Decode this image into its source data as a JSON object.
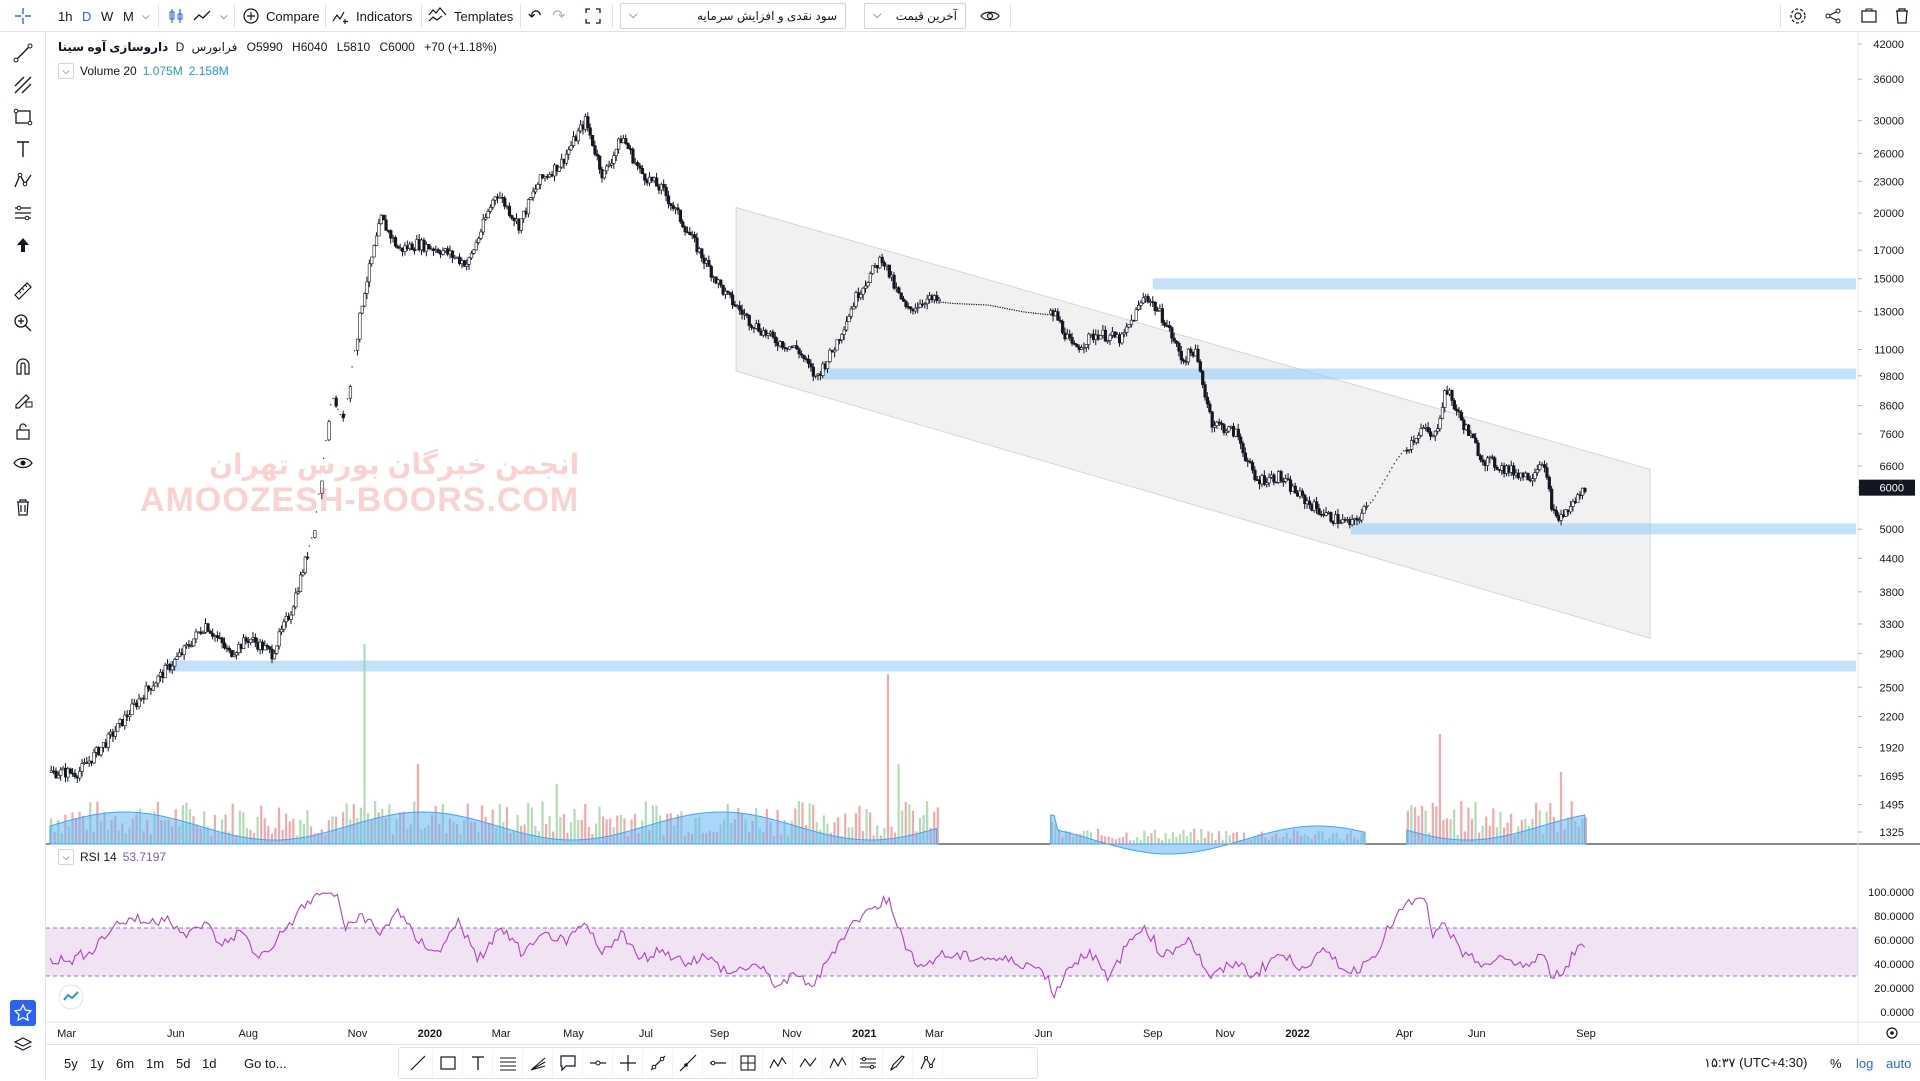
{
  "topbar": {
    "intervals": [
      "1h",
      "D",
      "W",
      "M"
    ],
    "selected_interval": "D",
    "compare_label": "Compare",
    "indicators_label": "Indicators",
    "templates_label": "Templates",
    "dropdown1_value": "سود نقدی و افزایش سرمایه",
    "dropdown2_value": "آخرین قیمت"
  },
  "legend": {
    "symbol": "داروسازی آوه سینا",
    "interval": "D",
    "exchange": "فرابورس",
    "open": "O5990",
    "high": "H6040",
    "low": "L5810",
    "close": "C6000",
    "change": "+70 (+1.18%)",
    "volume_label": "Volume 20",
    "volume_value": "1.075M",
    "volume_ma": "2.158M",
    "rsi_label": "RSI 14",
    "rsi_value": "53.7197"
  },
  "watermark": {
    "fa": "انجمن خبرگان بورس تهران",
    "en": "AMOOZESH-BOORS.COM"
  },
  "bottombar": {
    "ranges": [
      "5y",
      "1y",
      "6m",
      "1m",
      "5d",
      "1d"
    ],
    "goto_label": "Go to...",
    "clock": "۱۵:۳۷ (UTC+4:30)",
    "percent_label": "%",
    "log_label": "log",
    "auto_label": "auto"
  },
  "chart_data": [
    {
      "type": "candlestick",
      "scale": "log",
      "price_axis_ticks": [
        42000,
        36000,
        30000,
        26000,
        23000,
        20000,
        17000,
        15000,
        13000,
        11000,
        9800,
        8600,
        7600,
        6600,
        6000,
        5000,
        4400,
        3800,
        3300,
        2900,
        2500,
        2200,
        1920,
        1695,
        1495,
        1325
      ],
      "last_price": 6000,
      "x_tick_labels": [
        "Mar",
        "Jun",
        "Aug",
        "Nov",
        "2020",
        "Mar",
        "May",
        "Jul",
        "Sep",
        "Nov",
        "2021",
        "Mar",
        "Jun",
        "Sep",
        "Nov",
        "2022",
        "Apr",
        "Jun",
        "Sep"
      ],
      "close_path": [
        [
          "2019-02-15",
          1720
        ],
        [
          "2019-03-10",
          1720
        ],
        [
          "2019-04-05",
          2000
        ],
        [
          "2019-05-05",
          2450
        ],
        [
          "2019-06-05",
          2900
        ],
        [
          "2019-06-25",
          3300
        ],
        [
          "2019-07-15",
          2900
        ],
        [
          "2019-08-01",
          3100
        ],
        [
          "2019-08-20",
          2900
        ],
        [
          "2019-09-05",
          3500
        ],
        [
          "2019-09-25",
          5000
        ],
        [
          "2019-10-10",
          9000
        ],
        [
          "2019-10-20",
          8000
        ],
        [
          "2019-11-05",
          14000
        ],
        [
          "2019-11-20",
          19500
        ],
        [
          "2019-12-05",
          17000
        ],
        [
          "2019-12-20",
          17500
        ],
        [
          "2020-01-10",
          17000
        ],
        [
          "2020-02-01",
          16000
        ],
        [
          "2020-02-25",
          22000
        ],
        [
          "2020-03-15",
          19000
        ],
        [
          "2020-04-01",
          23000
        ],
        [
          "2020-04-20",
          25000
        ],
        [
          "2020-05-10",
          30000
        ],
        [
          "2020-05-25",
          23500
        ],
        [
          "2020-06-10",
          28000
        ],
        [
          "2020-06-25",
          24000
        ],
        [
          "2020-07-15",
          22000
        ],
        [
          "2020-08-01",
          19000
        ],
        [
          "2020-08-20",
          16000
        ],
        [
          "2020-09-05",
          14000
        ],
        [
          "2020-09-25",
          12500
        ],
        [
          "2020-10-15",
          11500
        ],
        [
          "2020-11-05",
          11000
        ],
        [
          "2020-11-20",
          9700
        ],
        [
          "2020-12-05",
          11000
        ],
        [
          "2020-12-25",
          14000
        ],
        [
          "2021-01-15",
          16500
        ],
        [
          "2021-01-25",
          14500
        ],
        [
          "2021-02-05",
          13000
        ],
        [
          "2021-02-20",
          13700
        ],
        [
          "2021-03-15",
          13500
        ],
        [
          "2021-04-15",
          13400
        ],
        [
          "2021-05-15",
          13000
        ],
        [
          "2021-06-10",
          12800
        ],
        [
          "2021-06-25",
          11000
        ],
        [
          "2021-07-15",
          11800
        ],
        [
          "2021-08-05",
          11500
        ],
        [
          "2021-08-25",
          14000
        ],
        [
          "2021-09-10",
          12500
        ],
        [
          "2021-09-25",
          10500
        ],
        [
          "2021-10-05",
          11000
        ],
        [
          "2021-10-20",
          8000
        ],
        [
          "2021-11-10",
          7600
        ],
        [
          "2021-11-25",
          6200
        ],
        [
          "2021-12-15",
          6300
        ],
        [
          "2022-01-05",
          5700
        ],
        [
          "2022-01-25",
          5300
        ],
        [
          "2022-02-15",
          5100
        ],
        [
          "2022-03-05",
          5700
        ],
        [
          "2022-03-25",
          6800
        ],
        [
          "2022-04-15",
          7800
        ],
        [
          "2022-04-25",
          7400
        ],
        [
          "2022-05-05",
          9300
        ],
        [
          "2022-05-15",
          8300
        ],
        [
          "2022-06-05",
          6800
        ],
        [
          "2022-06-25",
          6500
        ],
        [
          "2022-07-15",
          6300
        ],
        [
          "2022-07-25",
          6800
        ],
        [
          "2022-08-05",
          5200
        ],
        [
          "2022-08-15",
          5400
        ],
        [
          "2022-08-30",
          6000
        ]
      ],
      "horizontal_zones": [
        {
          "price": 14700,
          "from": "2021-09-01"
        },
        {
          "price": 9900,
          "from": "2020-11-25"
        },
        {
          "price": 5020,
          "from": "2022-02-15"
        },
        {
          "price": 2750,
          "from": "2019-05-25"
        }
      ],
      "parallel_channel": {
        "upper_start": [
          "2020-09-15",
          20500
        ],
        "upper_end": [
          "2022-10-25",
          6500
        ],
        "lower_start": [
          "2020-09-15",
          10000
        ],
        "lower_end": [
          "2022-10-25",
          3100
        ]
      }
    },
    {
      "type": "bar",
      "name": "Volume 20",
      "note_ma": "2.158M"
    },
    {
      "type": "line",
      "name": "RSI 14",
      "y_ticks": [
        100,
        80,
        60,
        40,
        20,
        0
      ],
      "band": [
        30,
        70
      ],
      "points": [
        [
          "2019-02-15",
          45
        ],
        [
          "2019-03-01",
          42
        ],
        [
          "2019-03-20",
          50
        ],
        [
          "2019-04-10",
          72
        ],
        [
          "2019-04-25",
          78
        ],
        [
          "2019-05-10",
          74
        ],
        [
          "2019-05-25",
          80
        ],
        [
          "2019-06-10",
          62
        ],
        [
          "2019-06-25",
          75
        ],
        [
          "2019-07-10",
          55
        ],
        [
          "2019-07-25",
          68
        ],
        [
          "2019-08-10",
          45
        ],
        [
          "2019-08-25",
          60
        ],
        [
          "2019-09-10",
          80
        ],
        [
          "2019-09-25",
          96
        ],
        [
          "2019-10-05",
          100
        ],
        [
          "2019-10-15",
          98
        ],
        [
          "2019-10-22",
          68
        ],
        [
          "2019-11-05",
          82
        ],
        [
          "2019-11-20",
          64
        ],
        [
          "2019-12-05",
          86
        ],
        [
          "2019-12-20",
          60
        ],
        [
          "2020-01-10",
          50
        ],
        [
          "2020-01-25",
          78
        ],
        [
          "2020-02-10",
          42
        ],
        [
          "2020-03-01",
          70
        ],
        [
          "2020-03-20",
          48
        ],
        [
          "2020-04-10",
          66
        ],
        [
          "2020-04-25",
          56
        ],
        [
          "2020-05-10",
          74
        ],
        [
          "2020-05-25",
          48
        ],
        [
          "2020-06-10",
          68
        ],
        [
          "2020-06-25",
          44
        ],
        [
          "2020-07-15",
          52
        ],
        [
          "2020-08-01",
          42
        ],
        [
          "2020-08-20",
          46
        ],
        [
          "2020-09-10",
          32
        ],
        [
          "2020-10-01",
          40
        ],
        [
          "2020-10-20",
          22
        ],
        [
          "2020-11-05",
          30
        ],
        [
          "2020-11-20",
          22
        ],
        [
          "2020-12-05",
          50
        ],
        [
          "2020-12-20",
          72
        ],
        [
          "2021-01-10",
          88
        ],
        [
          "2021-01-22",
          95
        ],
        [
          "2021-02-05",
          52
        ],
        [
          "2021-02-20",
          38
        ],
        [
          "2021-03-05",
          47
        ],
        [
          "2021-04-15",
          45
        ],
        [
          "2021-05-20",
          40
        ],
        [
          "2021-06-05",
          30
        ],
        [
          "2021-06-10",
          12
        ],
        [
          "2021-06-20",
          35
        ],
        [
          "2021-07-10",
          52
        ],
        [
          "2021-07-25",
          26
        ],
        [
          "2021-08-10",
          55
        ],
        [
          "2021-08-25",
          72
        ],
        [
          "2021-09-10",
          46
        ],
        [
          "2021-10-01",
          62
        ],
        [
          "2021-10-20",
          28
        ],
        [
          "2021-11-10",
          42
        ],
        [
          "2021-11-25",
          30
        ],
        [
          "2021-12-15",
          48
        ],
        [
          "2022-01-05",
          38
        ],
        [
          "2022-01-25",
          50
        ],
        [
          "2022-02-15",
          32
        ],
        [
          "2022-03-05",
          46
        ],
        [
          "2022-03-25",
          80
        ],
        [
          "2022-04-10",
          94
        ],
        [
          "2022-04-20",
          90
        ],
        [
          "2022-04-25",
          62
        ],
        [
          "2022-05-05",
          74
        ],
        [
          "2022-05-20",
          46
        ],
        [
          "2022-06-10",
          40
        ],
        [
          "2022-06-25",
          44
        ],
        [
          "2022-07-15",
          38
        ],
        [
          "2022-07-25",
          48
        ],
        [
          "2022-08-05",
          28
        ],
        [
          "2022-08-15",
          38
        ],
        [
          "2022-08-25",
          55
        ],
        [
          "2022-08-31",
          54
        ]
      ]
    }
  ]
}
